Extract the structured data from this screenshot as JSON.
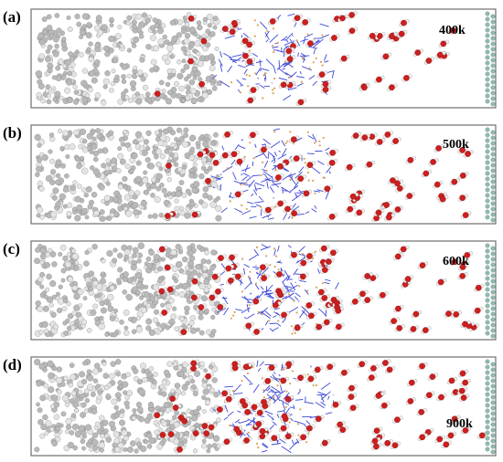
{
  "panels": [
    {
      "label": "(a)",
      "temperature": "400k",
      "water_extent": "partial"
    },
    {
      "label": "(b)",
      "temperature": "500k",
      "water_extent": "moderate"
    },
    {
      "label": "(c)",
      "temperature": "600k",
      "water_extent": "wide"
    },
    {
      "label": "(d)",
      "temperature": "900k",
      "water_extent": "full"
    }
  ],
  "colors": {
    "frame": "#6f6f6f",
    "hydrocarbon_atom": "#b9b9b9",
    "water_oxygen": "#cc1f1f",
    "water_hydrogen": "#f0f0f0",
    "framework_bond": "#3b47d6",
    "framework_metal": "#d8a35a",
    "wall_atom": "#8fbab0"
  }
}
